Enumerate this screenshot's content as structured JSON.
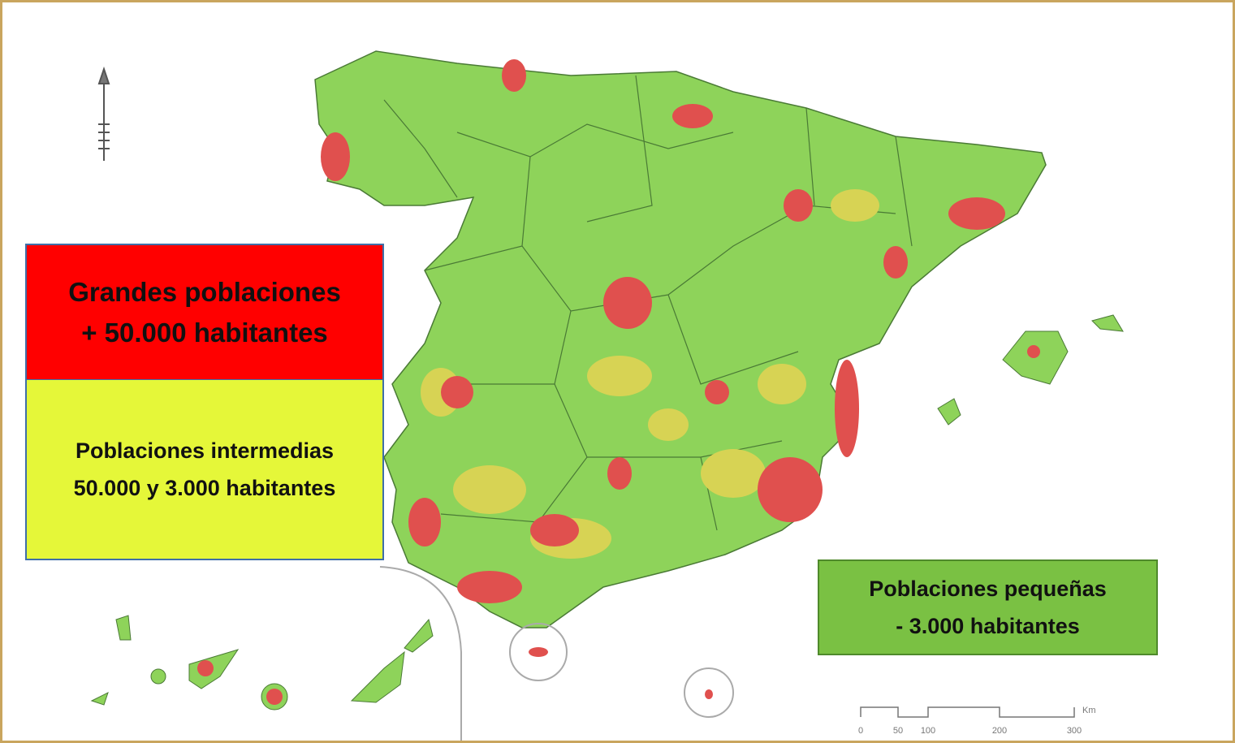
{
  "legend": [
    {
      "lines": [
        "Grandes poblaciones",
        "+ 50.000 habitantes"
      ]
    },
    {
      "lines": [
        "Poblaciones intermedias",
        "50.000 y 3.000 habitantes"
      ]
    },
    {
      "lines": [
        "Poblaciones pequeñas",
        "- 3.000 habitantes"
      ]
    }
  ],
  "scale_bar": {
    "labels": [
      "0",
      "50",
      "100",
      "200",
      "300"
    ],
    "unit": "Km"
  }
}
